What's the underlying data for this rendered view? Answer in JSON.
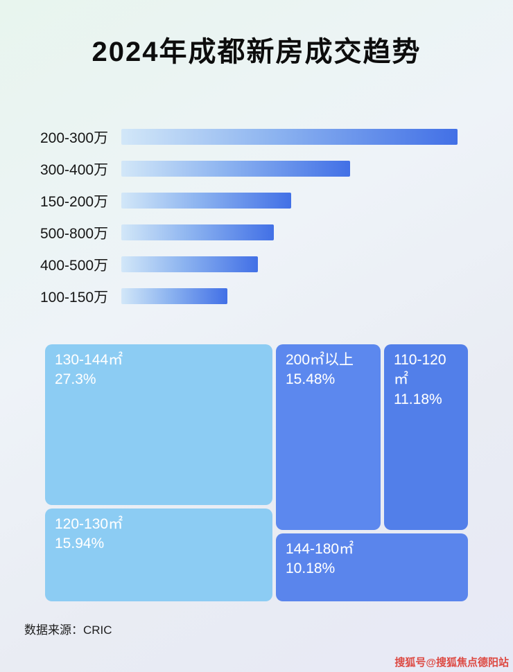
{
  "page": {
    "title": "2024年成都新房成交趋势",
    "source": "数据来源：CRIC",
    "watermark": "搜狐号@搜狐焦点德阳站"
  },
  "chart_data": [
    {
      "type": "bar",
      "orientation": "horizontal",
      "title": "2024年成都新房成交趋势",
      "categories": [
        "200-300万",
        "300-400万",
        "150-200万",
        "500-800万",
        "400-500万",
        "100-150万"
      ],
      "values": [
        100,
        68,
        50.5,
        45.4,
        40.6,
        31.5
      ],
      "value_note": "relative bar length, percent of longest bar (no numeric axis shown)",
      "xlabel": "",
      "ylabel": "",
      "grid": false,
      "legend": false,
      "bar_gradient": [
        "#d2e7f8",
        "#4270e6"
      ]
    },
    {
      "type": "treemap",
      "title": "",
      "blocks": [
        {
          "label": "130-144㎡",
          "value": "27.3%",
          "color": "#8cccf3"
        },
        {
          "label": "200㎡以上",
          "value": "15.48%",
          "color": "#5c88ee"
        },
        {
          "label": "110-120㎡",
          "value": "11.18%",
          "color": "#527fe9"
        },
        {
          "label": "120-130㎡",
          "value": "15.94%",
          "color": "#8cccf3"
        },
        {
          "label": "144-180㎡",
          "value": "10.18%",
          "color": "#5a85ec"
        }
      ]
    }
  ]
}
